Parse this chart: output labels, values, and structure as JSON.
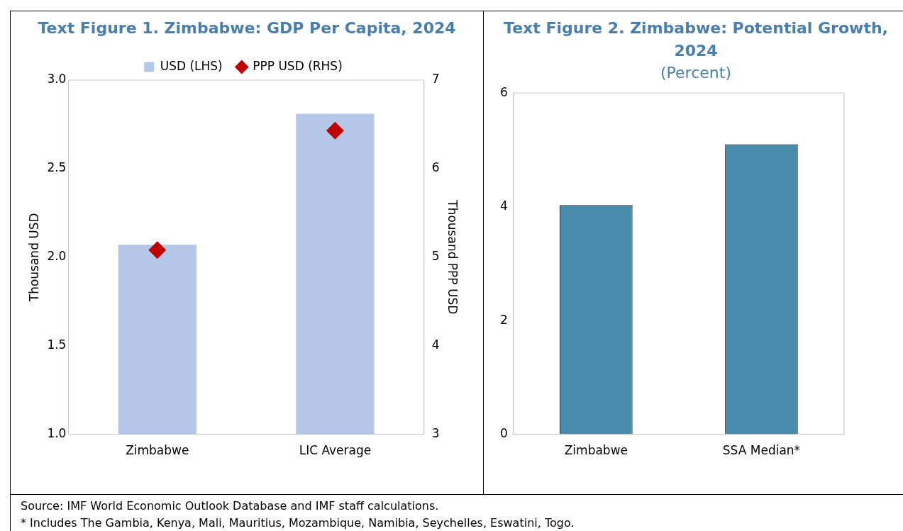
{
  "chart_data": [
    {
      "type": "bar",
      "title": "Text Figure 1. Zimbabwe: GDP Per Capita, 2024",
      "ylabel": "Thousand USD",
      "y2label": "Thousand PPP USD",
      "categories": [
        "Zimbabwe",
        "LIC Average"
      ],
      "series": [
        {
          "name": "USD (LHS)",
          "color": "#b4c7e7",
          "values": [
            2.07,
            2.81
          ]
        },
        {
          "name": "PPP USD (RHS)",
          "type": "scatter",
          "axis": "y2",
          "color": "#c00000",
          "values": [
            5.08,
            6.43
          ]
        }
      ],
      "ylim": [
        1.0,
        3.0
      ],
      "yticks": [
        {
          "value": 1,
          "label": "1.0"
        },
        1.5,
        {
          "value": 2,
          "label": "2.0"
        },
        2.5,
        {
          "value": 3,
          "label": "3.0"
        }
      ],
      "y2lim": [
        3,
        7
      ],
      "y2ticks": [
        3,
        4,
        5,
        6,
        7
      ],
      "legend": "top",
      "marker": "diamond",
      "grid": false,
      "annotations": [
        "Source: IMF World Economic Outlook Database and IMF staff calculations."
      ]
    },
    {
      "type": "bar",
      "title": "Text Figure 2. Zimbabwe: Potential Growth, 2024",
      "subtitle": "(Percent)",
      "categories": [
        "Zimbabwe",
        "SSA Median*"
      ],
      "series": [
        {
          "color": "#4a8bad",
          "values": [
            4.03,
            5.1
          ]
        }
      ],
      "ylim": [
        0,
        6
      ],
      "yticks": [
        0,
        2,
        4,
        6
      ],
      "grid": false,
      "legend": false,
      "annotations": [
        "* Includes The Gambia, Kenya, Mali, Mauritius, Mozambique, Namibia, Seychelles, Eswatini, Togo."
      ]
    }
  ]
}
